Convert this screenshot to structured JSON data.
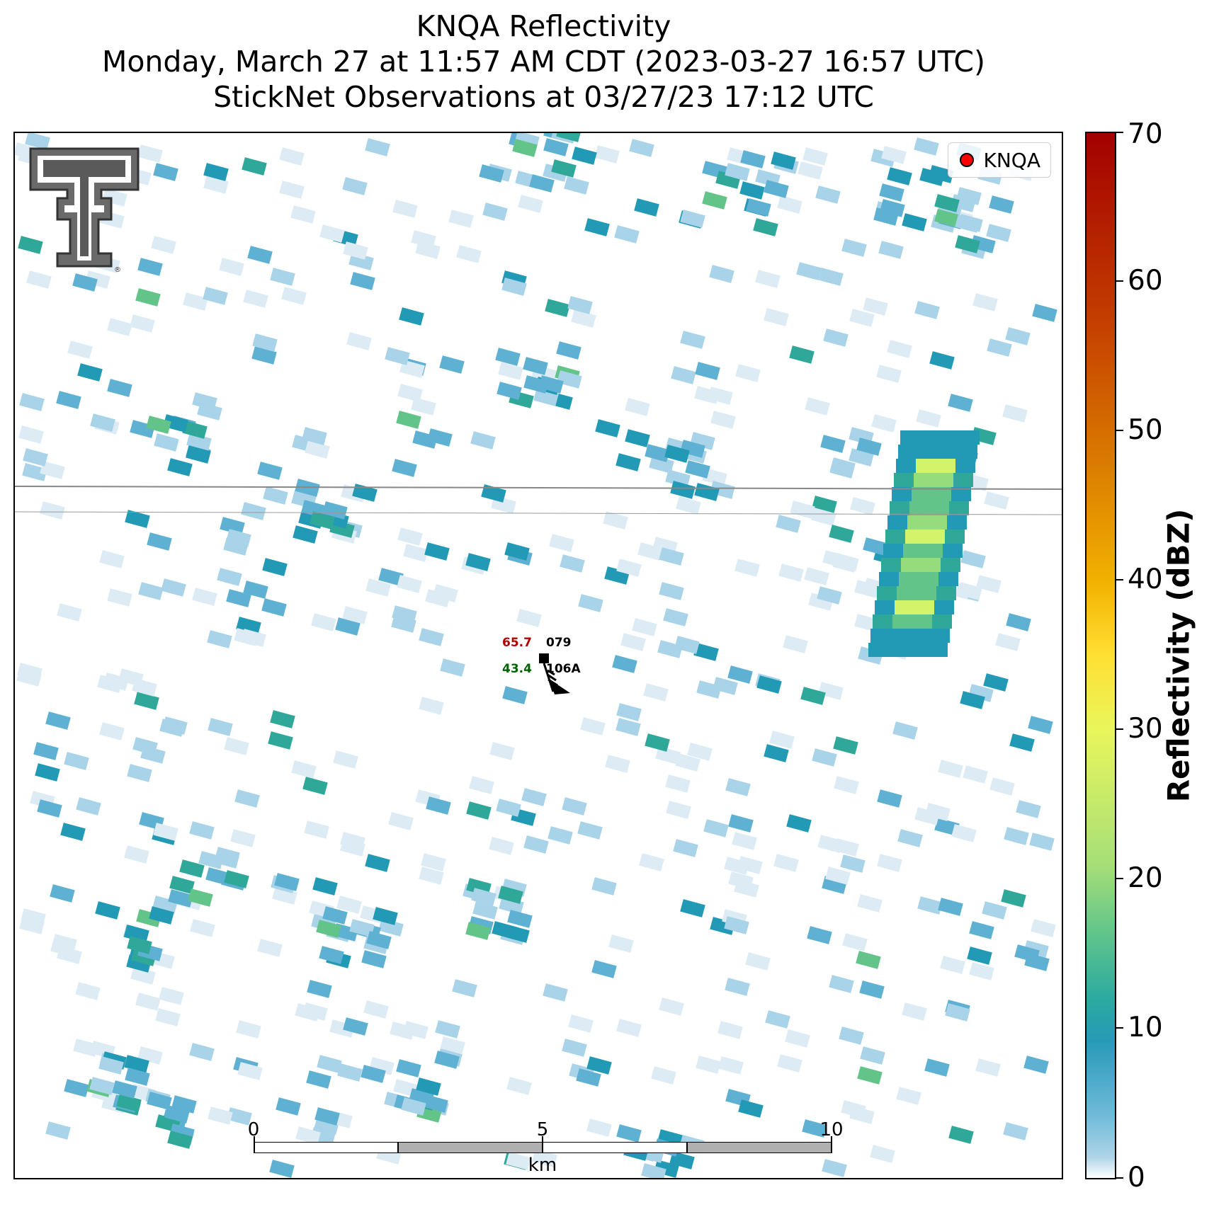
{
  "title": {
    "line1": "KNQA Reflectivity",
    "line2": "Monday, March 27 at 11:57 AM CDT (2023-03-27 16:57 UTC)",
    "line3": "StickNet Observations at 03/27/23 17:12 UTC"
  },
  "legend": {
    "label": "KNQA",
    "marker_color": "#ff0000"
  },
  "station": {
    "temperature": "65.7",
    "temperature_color": "#b00000",
    "dewpoint": "43.4",
    "dewpoint_color": "#006400",
    "wind_direction": "079",
    "station_name": "106A"
  },
  "scalebar": {
    "labels": [
      "0",
      "5",
      "10"
    ],
    "unit": "km"
  },
  "colorbar": {
    "title": "Reflectivity (dBZ)",
    "min": 0,
    "max": 70,
    "ticks": [
      "0",
      "10",
      "20",
      "30",
      "40",
      "50",
      "60",
      "70"
    ]
  },
  "colors": {
    "very_light": "#dcebf4",
    "light_blue": "#a9d3e8",
    "mid_blue": "#5fb1d3",
    "teal_blue": "#2299b5",
    "teal": "#2fa89a",
    "green": "#62c488",
    "light_green": "#96db7c",
    "yellow_green": "#d2f36a"
  },
  "logo": {
    "name": "texas-tech-double-t-logo"
  }
}
